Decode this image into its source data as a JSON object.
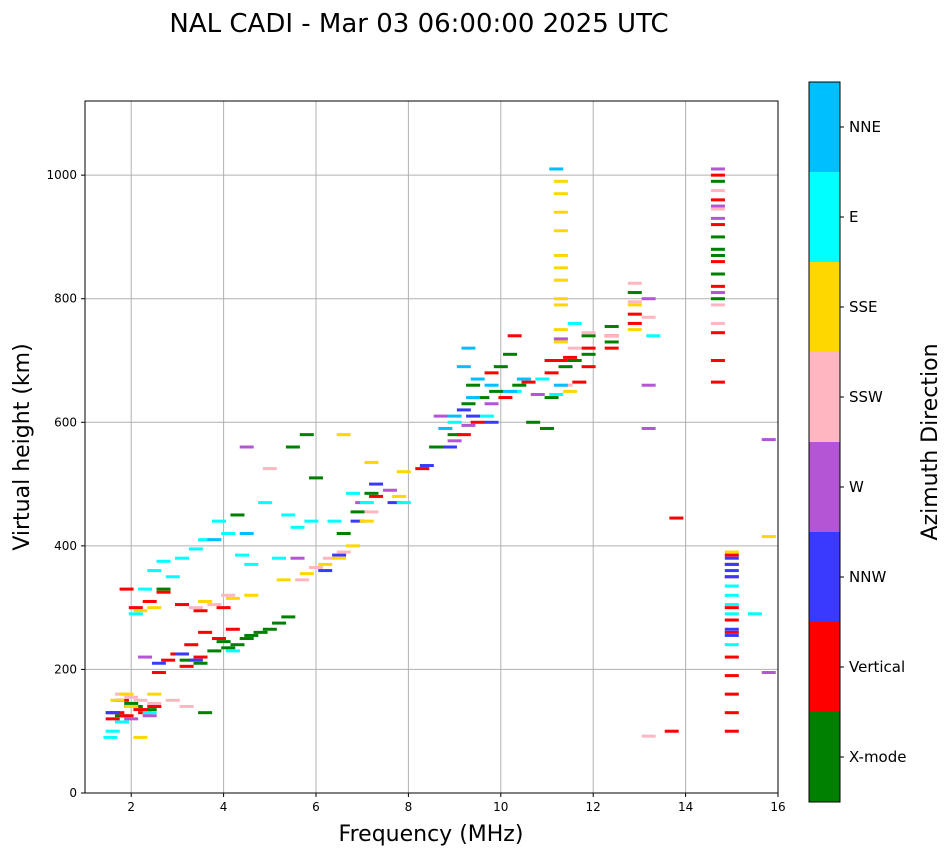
{
  "chart_data": {
    "type": "scatter",
    "title": "NAL CADI - Mar 03 06:00:00 2025 UTC",
    "xlabel": "Frequency (MHz)",
    "ylabel": "Virtual height (km)",
    "xlim": [
      1,
      16
    ],
    "ylim": [
      0,
      1120
    ],
    "xticks": [
      2,
      4,
      6,
      8,
      10,
      12,
      14,
      16
    ],
    "yticks": [
      0,
      200,
      400,
      600,
      800,
      1000
    ],
    "grid": true,
    "marker": "short horizontal dash",
    "colorbar": {
      "label": "Azimuth Direction",
      "categories": [
        {
          "name": "X-mode",
          "color": "#008000"
        },
        {
          "name": "Vertical",
          "color": "#ff0000"
        },
        {
          "name": "NNW",
          "color": "#3a3aff"
        },
        {
          "name": "W",
          "color": "#b455d6"
        },
        {
          "name": "SSW",
          "color": "#ffb6c1"
        },
        {
          "name": "SSE",
          "color": "#ffd700"
        },
        {
          "name": "E",
          "color": "#00ffff"
        },
        {
          "name": "NNE",
          "color": "#00bfff"
        }
      ]
    },
    "series": [
      {
        "name": "X-mode",
        "points": [
          [
            3.5,
            210
          ],
          [
            3.8,
            230
          ],
          [
            4,
            245
          ],
          [
            4.1,
            235
          ],
          [
            4.3,
            240
          ],
          [
            4.5,
            250
          ],
          [
            4.6,
            255
          ],
          [
            4.8,
            260
          ],
          [
            5,
            265
          ],
          [
            5.2,
            275
          ],
          [
            5.4,
            285
          ],
          [
            3.2,
            215
          ],
          [
            2.1,
            140
          ],
          [
            2.4,
            135
          ],
          [
            6.6,
            420
          ],
          [
            6.9,
            455
          ],
          [
            7.2,
            485
          ],
          [
            8.6,
            560
          ],
          [
            9,
            580
          ],
          [
            9.3,
            630
          ],
          [
            9.4,
            660
          ],
          [
            9.6,
            640
          ],
          [
            9.9,
            650
          ],
          [
            10,
            690
          ],
          [
            10.2,
            710
          ],
          [
            10.4,
            660
          ],
          [
            10.7,
            600
          ],
          [
            11,
            590
          ],
          [
            11.1,
            640
          ],
          [
            11.4,
            690
          ],
          [
            11.6,
            700
          ],
          [
            11.9,
            710
          ],
          [
            11.9,
            740
          ],
          [
            12.4,
            755
          ],
          [
            12.4,
            730
          ],
          [
            12.9,
            810
          ],
          [
            14.7,
            800
          ],
          [
            14.7,
            840
          ],
          [
            14.7,
            870
          ],
          [
            14.7,
            880
          ],
          [
            14.7,
            900
          ],
          [
            14.7,
            990
          ],
          [
            5.8,
            580
          ],
          [
            5.5,
            560
          ],
          [
            6,
            510
          ],
          [
            4.3,
            450
          ],
          [
            2.7,
            330
          ],
          [
            1.6,
            130
          ],
          [
            1.8,
            125
          ],
          [
            2,
            145
          ],
          [
            3.6,
            130
          ]
        ]
      },
      {
        "name": "Vertical",
        "points": [
          [
            1.6,
            120
          ],
          [
            1.7,
            130
          ],
          [
            1.8,
            150
          ],
          [
            1.9,
            125
          ],
          [
            2,
            140
          ],
          [
            2.2,
            135
          ],
          [
            2.3,
            130
          ],
          [
            2.5,
            140
          ],
          [
            2.6,
            195
          ],
          [
            2.8,
            215
          ],
          [
            3,
            225
          ],
          [
            3.2,
            205
          ],
          [
            3.3,
            240
          ],
          [
            3.5,
            220
          ],
          [
            3.6,
            260
          ],
          [
            3.9,
            250
          ],
          [
            4.2,
            265
          ],
          [
            2.1,
            300
          ],
          [
            2.4,
            310
          ],
          [
            2.7,
            325
          ],
          [
            3.1,
            305
          ],
          [
            3.5,
            295
          ],
          [
            4,
            300
          ],
          [
            1.9,
            330
          ],
          [
            9.2,
            580
          ],
          [
            9.5,
            600
          ],
          [
            9.8,
            680
          ],
          [
            10.1,
            640
          ],
          [
            10.3,
            740
          ],
          [
            10.6,
            665
          ],
          [
            11.1,
            680
          ],
          [
            11.1,
            700
          ],
          [
            11.3,
            700
          ],
          [
            11.5,
            705
          ],
          [
            11.7,
            665
          ],
          [
            11.9,
            690
          ],
          [
            11.9,
            720
          ],
          [
            12.4,
            720
          ],
          [
            12.4,
            740
          ],
          [
            12.9,
            775
          ],
          [
            12.9,
            760
          ],
          [
            14.7,
            665
          ],
          [
            14.7,
            700
          ],
          [
            14.7,
            745
          ],
          [
            14.7,
            820
          ],
          [
            14.7,
            860
          ],
          [
            14.7,
            920
          ],
          [
            14.7,
            960
          ],
          [
            14.7,
            1000
          ],
          [
            13.8,
            445
          ],
          [
            13.7,
            100
          ],
          [
            15,
            100
          ],
          [
            15,
            130
          ],
          [
            15,
            160
          ],
          [
            15,
            190
          ],
          [
            15,
            220
          ],
          [
            15,
            260
          ],
          [
            15,
            280
          ],
          [
            15,
            300
          ],
          [
            15,
            350
          ],
          [
            15,
            370
          ],
          [
            15,
            385
          ],
          [
            7.3,
            480
          ],
          [
            8.3,
            525
          ]
        ]
      },
      {
        "name": "NNW",
        "points": [
          [
            1.6,
            130
          ],
          [
            2.6,
            210
          ],
          [
            3.1,
            225
          ],
          [
            3.4,
            215
          ],
          [
            6.2,
            360
          ],
          [
            6.5,
            385
          ],
          [
            6.9,
            440
          ],
          [
            7.3,
            500
          ],
          [
            7.7,
            470
          ],
          [
            8.4,
            530
          ],
          [
            8.9,
            560
          ],
          [
            9.2,
            620
          ],
          [
            9.4,
            610
          ],
          [
            9.8,
            600
          ],
          [
            15,
            350
          ],
          [
            15,
            360
          ],
          [
            15,
            370
          ],
          [
            15,
            380
          ],
          [
            15,
            265
          ],
          [
            15,
            255
          ]
        ]
      },
      {
        "name": "W",
        "points": [
          [
            2,
            120
          ],
          [
            2.4,
            125
          ],
          [
            5.6,
            380
          ],
          [
            7,
            470
          ],
          [
            7.6,
            490
          ],
          [
            8.7,
            610
          ],
          [
            9,
            570
          ],
          [
            9.3,
            595
          ],
          [
            9.8,
            630
          ],
          [
            10.8,
            645
          ],
          [
            11.3,
            735
          ],
          [
            13.2,
            800
          ],
          [
            13.2,
            660
          ],
          [
            13.2,
            590
          ],
          [
            15.8,
            572
          ],
          [
            15.8,
            195
          ],
          [
            14.7,
            1010
          ],
          [
            14.7,
            950
          ],
          [
            14.7,
            930
          ],
          [
            14.7,
            810
          ],
          [
            4.5,
            560
          ],
          [
            2.3,
            220
          ]
        ]
      },
      {
        "name": "SSW",
        "points": [
          [
            1.8,
            160
          ],
          [
            2,
            155
          ],
          [
            2.2,
            150
          ],
          [
            2.5,
            145
          ],
          [
            2.9,
            150
          ],
          [
            3.2,
            140
          ],
          [
            3.4,
            300
          ],
          [
            3.6,
            310
          ],
          [
            3.8,
            305
          ],
          [
            4.1,
            320
          ],
          [
            5.7,
            345
          ],
          [
            6,
            365
          ],
          [
            6.3,
            380
          ],
          [
            6.6,
            390
          ],
          [
            7.2,
            455
          ],
          [
            11.4,
            660
          ],
          [
            11.6,
            720
          ],
          [
            11.9,
            745
          ],
          [
            12.4,
            740
          ],
          [
            12.9,
            825
          ],
          [
            12.9,
            795
          ],
          [
            13.2,
            770
          ],
          [
            13.2,
            92
          ],
          [
            14.7,
            760
          ],
          [
            14.7,
            790
          ],
          [
            14.7,
            945
          ],
          [
            14.7,
            975
          ],
          [
            5,
            525
          ]
        ]
      },
      {
        "name": "SSE",
        "points": [
          [
            1.7,
            150
          ],
          [
            1.9,
            160
          ],
          [
            2,
            140
          ],
          [
            2.2,
            90
          ],
          [
            2.5,
            160
          ],
          [
            2.2,
            295
          ],
          [
            2.5,
            300
          ],
          [
            3.6,
            310
          ],
          [
            4.2,
            315
          ],
          [
            4.6,
            320
          ],
          [
            5.3,
            345
          ],
          [
            5.8,
            355
          ],
          [
            6.2,
            370
          ],
          [
            6.5,
            380
          ],
          [
            6.8,
            400
          ],
          [
            7.1,
            440
          ],
          [
            7.8,
            480
          ],
          [
            7.9,
            520
          ],
          [
            11.3,
            730
          ],
          [
            11.3,
            750
          ],
          [
            11.3,
            790
          ],
          [
            11.3,
            800
          ],
          [
            11.3,
            830
          ],
          [
            11.3,
            850
          ],
          [
            11.3,
            870
          ],
          [
            11.3,
            910
          ],
          [
            11.3,
            940
          ],
          [
            11.3,
            970
          ],
          [
            11.3,
            990
          ],
          [
            11.5,
            650
          ],
          [
            12.9,
            750
          ],
          [
            12.9,
            790
          ],
          [
            15.8,
            415
          ],
          [
            15,
            390
          ],
          [
            6.6,
            580
          ],
          [
            7.2,
            535
          ]
        ]
      },
      {
        "name": "E",
        "points": [
          [
            1.55,
            90
          ],
          [
            1.6,
            100
          ],
          [
            1.8,
            115
          ],
          [
            2.4,
            130
          ],
          [
            2.1,
            290
          ],
          [
            2.3,
            330
          ],
          [
            2.5,
            360
          ],
          [
            2.7,
            375
          ],
          [
            2.9,
            350
          ],
          [
            3.1,
            380
          ],
          [
            3.4,
            395
          ],
          [
            3.6,
            410
          ],
          [
            3.9,
            440
          ],
          [
            4.1,
            420
          ],
          [
            4.4,
            385
          ],
          [
            4.6,
            370
          ],
          [
            4.2,
            230
          ],
          [
            5.2,
            380
          ],
          [
            5.6,
            430
          ],
          [
            5.9,
            440
          ],
          [
            6.4,
            440
          ],
          [
            6.8,
            485
          ],
          [
            7.1,
            470
          ],
          [
            7.9,
            470
          ],
          [
            9,
            600
          ],
          [
            9.7,
            610
          ],
          [
            10.3,
            650
          ],
          [
            10.9,
            670
          ],
          [
            11.2,
            645
          ],
          [
            11.6,
            760
          ],
          [
            15,
            240
          ],
          [
            15,
            290
          ],
          [
            15,
            305
          ],
          [
            15,
            320
          ],
          [
            15,
            335
          ],
          [
            15.5,
            290
          ],
          [
            13.3,
            740
          ],
          [
            5.4,
            450
          ],
          [
            4.9,
            470
          ]
        ]
      },
      {
        "name": "NNE",
        "points": [
          [
            9.3,
            720
          ],
          [
            9.2,
            690
          ],
          [
            9.5,
            670
          ],
          [
            9.8,
            660
          ],
          [
            10.2,
            650
          ],
          [
            10.5,
            670
          ],
          [
            11.2,
            1010
          ],
          [
            11.3,
            660
          ],
          [
            9,
            610
          ],
          [
            8.8,
            590
          ],
          [
            9.4,
            640
          ],
          [
            4.5,
            420
          ],
          [
            3.8,
            410
          ]
        ]
      }
    ]
  }
}
